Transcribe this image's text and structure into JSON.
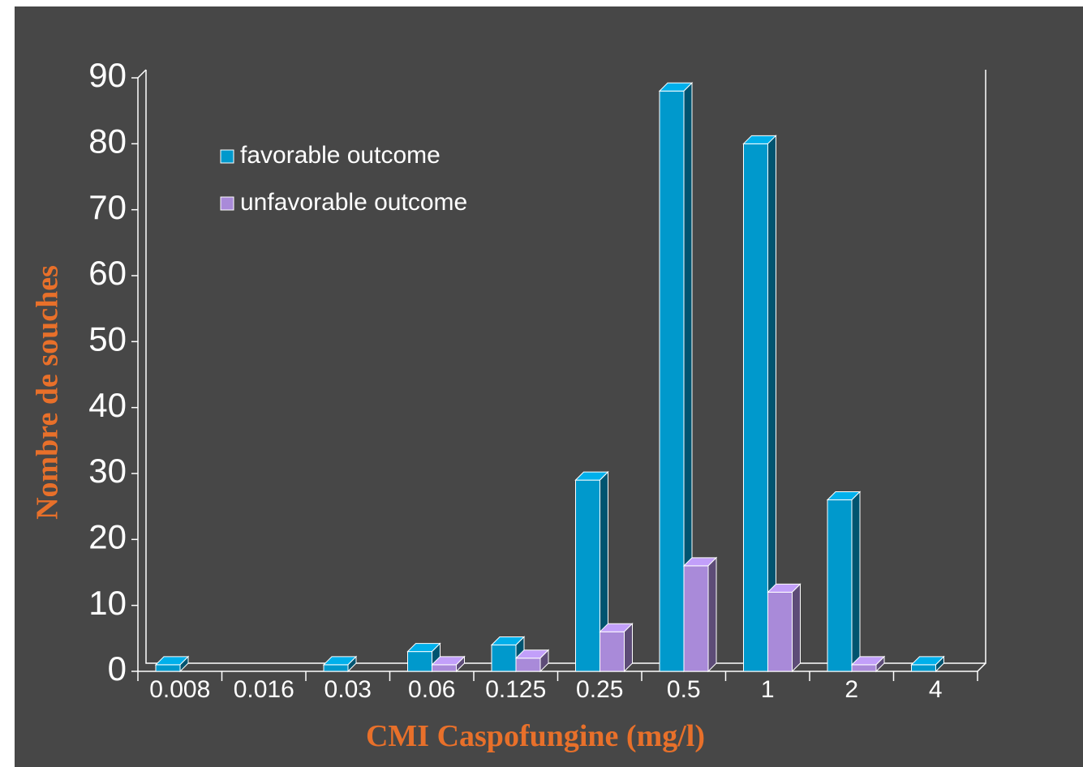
{
  "chart_data": {
    "type": "bar3d",
    "x_label": "CMI Caspofungine (mg/l)",
    "y_label": "Nombre de souches",
    "categories": [
      "0.008",
      "0.016",
      "0.03",
      "0.06",
      "0.125",
      "0.25",
      "0.5",
      "1",
      "2",
      "4"
    ],
    "series": [
      {
        "name": "favorable outcome",
        "color": "#0099cc",
        "values": [
          1,
          0,
          1,
          3,
          4,
          29,
          88,
          80,
          26,
          1
        ]
      },
      {
        "name": "unfavorable outcome",
        "color": "#a98ad9",
        "values": [
          0,
          0,
          0,
          1,
          2,
          6,
          16,
          12,
          1,
          0
        ]
      }
    ],
    "ylim": [
      0,
      90
    ],
    "yticks": [
      0,
      10,
      20,
      30,
      40,
      50,
      60,
      70,
      80,
      90
    ],
    "legend": "upper left"
  }
}
